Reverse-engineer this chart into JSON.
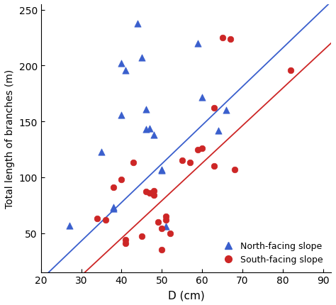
{
  "north_x": [
    27,
    35,
    38,
    38,
    40,
    40,
    41,
    44,
    45,
    46,
    46,
    47,
    48,
    50,
    50,
    51,
    59,
    60,
    64,
    66
  ],
  "north_y": [
    57,
    123,
    72,
    73,
    156,
    202,
    196,
    238,
    207,
    143,
    161,
    144,
    138,
    107,
    106,
    56,
    220,
    172,
    142,
    160
  ],
  "south_x": [
    34,
    36,
    38,
    40,
    41,
    41,
    43,
    45,
    46,
    47,
    48,
    48,
    49,
    50,
    50,
    51,
    51,
    52,
    55,
    57,
    59,
    60,
    63,
    63,
    65,
    67,
    68,
    82
  ],
  "south_y": [
    63,
    62,
    91,
    98,
    44,
    41,
    113,
    47,
    87,
    86,
    88,
    84,
    60,
    54,
    35,
    62,
    65,
    50,
    115,
    113,
    125,
    126,
    162,
    110,
    225,
    224,
    107,
    196
  ],
  "north_line_slope": 3.46,
  "north_line_intercept": -61,
  "south_line_slope": 3.36,
  "south_line_intercept": -89,
  "blue_color": "#3A5FCD",
  "red_color": "#CD2626",
  "xlabel": "D (cm)",
  "ylabel": "Total length of branches (m)",
  "xlim": [
    20,
    92
  ],
  "ylim": [
    15,
    255
  ],
  "xticks": [
    20,
    30,
    40,
    50,
    60,
    70,
    80,
    90
  ],
  "yticks": [
    50,
    100,
    150,
    200,
    250
  ],
  "legend_north": "North-facing slope",
  "legend_south": "South-facing slope",
  "background_color": "#ffffff",
  "figwidth": 4.74,
  "figheight": 4.31,
  "dpi": 100
}
